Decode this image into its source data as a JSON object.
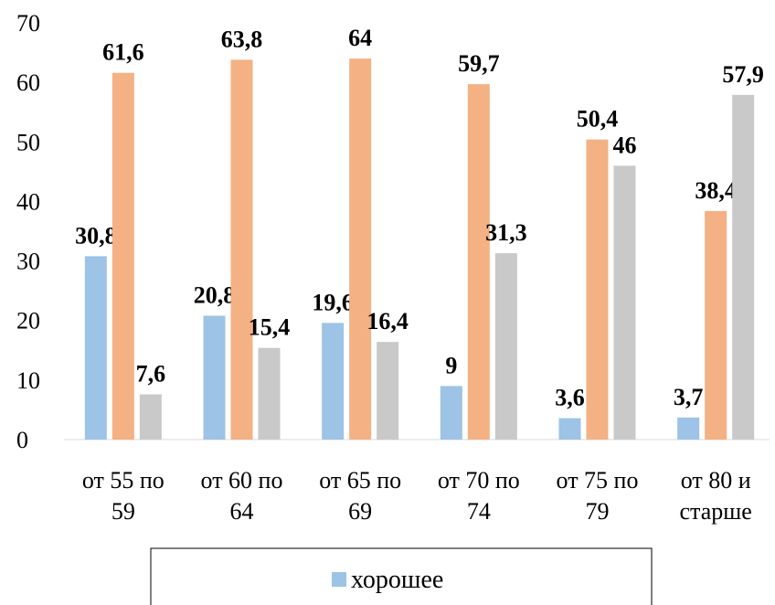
{
  "chart_data": {
    "type": "bar",
    "categories": [
      [
        "от 55 по",
        "59"
      ],
      [
        "от 60 по",
        "64"
      ],
      [
        "от 65 по",
        "69"
      ],
      [
        "от 70 по",
        "74"
      ],
      [
        "от 75 по",
        "79"
      ],
      [
        "от 80 и",
        "старше"
      ]
    ],
    "series": [
      {
        "name": "хорошее",
        "color": "#9DC3E6",
        "values": [
          30.8,
          20.8,
          19.6,
          9,
          3.6,
          3.7
        ],
        "labels": [
          "30,8",
          "20,8",
          "19,6",
          "9",
          "3,6",
          "3,7"
        ]
      },
      {
        "color": "#F4B183",
        "values": [
          61.6,
          63.8,
          64,
          59.7,
          50.4,
          38.4
        ],
        "labels": [
          "61,6",
          "63,8",
          "64",
          "59,7",
          "50,4",
          "38,4"
        ]
      },
      {
        "color": "#C9C9C9",
        "values": [
          7.6,
          15.4,
          16.4,
          31.3,
          46,
          57.9
        ],
        "labels": [
          "7,6",
          "15,4",
          "16,4",
          "31,3",
          "46",
          "57,9"
        ]
      }
    ],
    "ylim": [
      0,
      70
    ],
    "yticks": [
      0,
      10,
      20,
      30,
      40,
      50,
      60,
      70
    ],
    "grid": false,
    "legend": "bottom"
  }
}
